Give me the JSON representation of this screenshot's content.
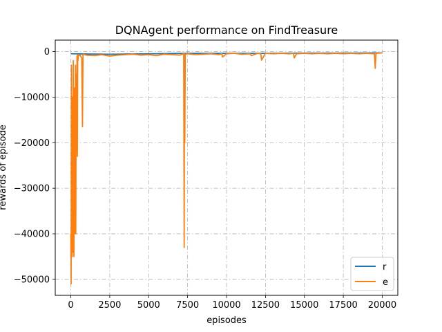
{
  "chart_data": {
    "type": "line",
    "title": "DQNAgent performance on FindTreasure",
    "xlabel": "episodes",
    "ylabel": "rewards of episode",
    "xlim": [
      -1000,
      21000
    ],
    "ylim": [
      -53500,
      2500
    ],
    "xticks": [
      0,
      2500,
      5000,
      7500,
      10000,
      12500,
      15000,
      17500,
      20000
    ],
    "xtick_labels": [
      "0",
      "2500",
      "5000",
      "7500",
      "10000",
      "12500",
      "15000",
      "17500",
      "20000"
    ],
    "yticks": [
      0,
      -10000,
      -20000,
      -30000,
      -40000,
      -50000
    ],
    "ytick_labels": [
      "0",
      "−10000",
      "−20000",
      "−30000",
      "−40000",
      "−50000"
    ],
    "grid": true,
    "grid_style": "dashdot",
    "legend_position": "lower right",
    "series": [
      {
        "name": "r",
        "color": "#1f77b4",
        "x": [
          0,
          2500,
          5000,
          7500,
          10000,
          12500,
          15000,
          17500,
          20000
        ],
        "y": [
          -500,
          -600,
          -500,
          -400,
          -400,
          -400,
          -350,
          -350,
          -300
        ]
      },
      {
        "name": "e",
        "color": "#ff7f0e",
        "x": [
          0,
          20,
          40,
          60,
          80,
          100,
          120,
          140,
          160,
          180,
          200,
          220,
          240,
          260,
          280,
          300,
          320,
          340,
          360,
          380,
          400,
          420,
          440,
          460,
          480,
          500,
          600,
          700,
          750,
          780,
          800,
          900,
          1000,
          1500,
          2000,
          2500,
          3000,
          3500,
          4000,
          4500,
          5000,
          5500,
          6000,
          6500,
          7000,
          7250,
          7280,
          7300,
          7320,
          7350,
          7500,
          8000,
          8500,
          9000,
          9500,
          9700,
          9750,
          10000,
          10500,
          11000,
          11500,
          11600,
          12000,
          12200,
          12250,
          12500,
          13000,
          13500,
          14000,
          14300,
          14350,
          14500,
          15000,
          15500,
          16000,
          16500,
          17000,
          17500,
          18000,
          18500,
          19000,
          19500,
          19550,
          19600,
          20000
        ],
        "y": [
          -40000,
          -51000,
          -3000,
          -20000,
          -45000,
          -10000,
          -35000,
          -44000,
          -2000,
          -30000,
          -45000,
          -8000,
          -40000,
          -15000,
          -25000,
          -3000,
          -40000,
          -12000,
          -5000,
          -22000,
          -1000,
          -23000,
          -800,
          -2000,
          -700,
          -900,
          -800,
          -1500,
          -16500,
          -700,
          -600,
          -700,
          -800,
          -900,
          -700,
          -1000,
          -800,
          -700,
          -600,
          -800,
          -700,
          -900,
          -600,
          -700,
          -800,
          -500,
          -43000,
          -500,
          -20000,
          -600,
          -500,
          -700,
          -600,
          -500,
          -700,
          -500,
          -1200,
          -500,
          -400,
          -600,
          -500,
          -900,
          -400,
          -500,
          -1900,
          -400,
          -500,
          -400,
          -500,
          -400,
          -1400,
          -500,
          -400,
          -500,
          -400,
          -500,
          -400,
          -500,
          -400,
          -500,
          -400,
          -500,
          -3700,
          -400,
          -300
        ]
      }
    ]
  }
}
